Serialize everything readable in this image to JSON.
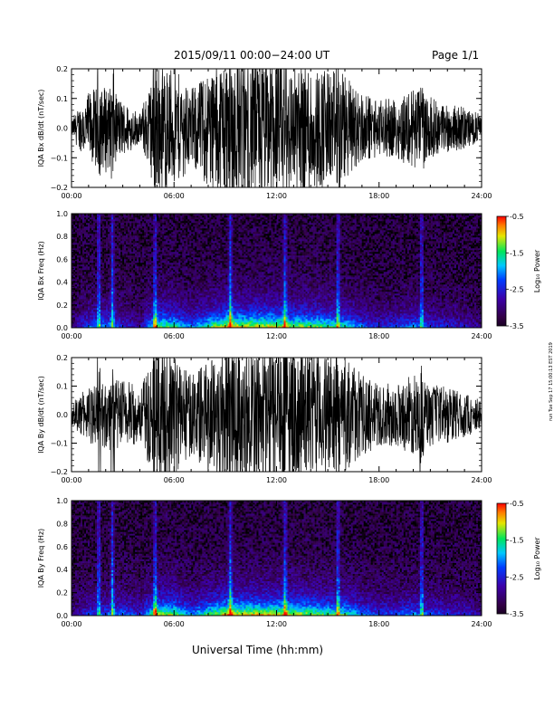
{
  "header": {
    "title": "2015/09/11  00:00−24:00 UT",
    "page_label": "Page 1/1"
  },
  "xlabel": "Universal Time (hh:mm)",
  "side_note": "run Tue Sep 17 15:00:13 EST 2019",
  "colorbar": {
    "label": "Log₁₀ Power",
    "ticks": [
      "-0.5",
      "-1.5",
      "-2.5",
      "-3.5"
    ],
    "range": [
      -3.5,
      -0.5
    ]
  },
  "chart_data": [
    {
      "type": "line",
      "ylabel": "IQA Bx dB/dt (nT/sec)",
      "x_ticks": [
        "00:00",
        "06:00",
        "12:00",
        "18:00",
        "24:00"
      ],
      "y_ticks": [
        "0.2",
        "0.1",
        "0.0",
        "−0.1",
        "−0.2"
      ],
      "xlim": [
        0,
        24
      ],
      "ylim": [
        -0.2,
        0.2
      ],
      "series": [
        {
          "x_hours": [
            0,
            1,
            2,
            3,
            4,
            5,
            6,
            7,
            8,
            9,
            10,
            11,
            12,
            13,
            14,
            15,
            16,
            17,
            18,
            19,
            20,
            21,
            22,
            23,
            24
          ],
          "amplitude": [
            0.03,
            0.12,
            0.15,
            0.09,
            0.05,
            0.22,
            0.2,
            0.13,
            0.2,
            0.25,
            0.25,
            0.25,
            0.24,
            0.22,
            0.22,
            0.2,
            0.18,
            0.12,
            0.09,
            0.1,
            0.14,
            0.1,
            0.08,
            0.07,
            0.04
          ]
        }
      ]
    },
    {
      "type": "heatmap",
      "ylabel": "IQA Bx Freq (Hz)",
      "x_ticks": [
        "00:00",
        "06:00",
        "12:00",
        "18:00",
        "24:00"
      ],
      "y_ticks": [
        "1.0",
        "0.8",
        "0.6",
        "0.4",
        "0.2",
        "0.0"
      ],
      "xlim": [
        0,
        24
      ],
      "ylim": [
        0,
        1.0
      ],
      "colorbar": "Log10 Power",
      "burst_hours": [
        1.6,
        2.4,
        4.9,
        9.3,
        12.5,
        15.6,
        20.5
      ],
      "baseline_log_power": -3.3,
      "peak_log_power": -1.0
    },
    {
      "type": "line",
      "ylabel": "IQA By dB/dt (nT/sec)",
      "x_ticks": [
        "00:00",
        "06:00",
        "12:00",
        "18:00",
        "24:00"
      ],
      "y_ticks": [
        "0.2",
        "0.1",
        "0.0",
        "−0.1",
        "−0.2"
      ],
      "xlim": [
        0,
        24
      ],
      "ylim": [
        -0.2,
        0.2
      ],
      "series": [
        {
          "x_hours": [
            0,
            1,
            2,
            3,
            4,
            5,
            6,
            7,
            8,
            9,
            10,
            11,
            12,
            13,
            14,
            15,
            16,
            17,
            18,
            19,
            20,
            21,
            22,
            23,
            24
          ],
          "amplitude": [
            0.04,
            0.1,
            0.12,
            0.13,
            0.09,
            0.24,
            0.22,
            0.14,
            0.2,
            0.25,
            0.25,
            0.25,
            0.25,
            0.24,
            0.22,
            0.2,
            0.2,
            0.14,
            0.11,
            0.11,
            0.14,
            0.11,
            0.1,
            0.08,
            0.05
          ]
        }
      ]
    },
    {
      "type": "heatmap",
      "ylabel": "IQA By Freq (Hz)",
      "x_ticks": [
        "00:00",
        "06:00",
        "12:00",
        "18:00",
        "24:00"
      ],
      "y_ticks": [
        "1.0",
        "0.8",
        "0.6",
        "0.4",
        "0.2",
        "0.0"
      ],
      "xlim": [
        0,
        24
      ],
      "ylim": [
        0,
        1.0
      ],
      "colorbar": "Log10 Power",
      "burst_hours": [
        1.6,
        2.4,
        4.9,
        9.3,
        12.5,
        15.6,
        20.5
      ],
      "baseline_log_power": -3.3,
      "peak_log_power": -1.0
    }
  ]
}
